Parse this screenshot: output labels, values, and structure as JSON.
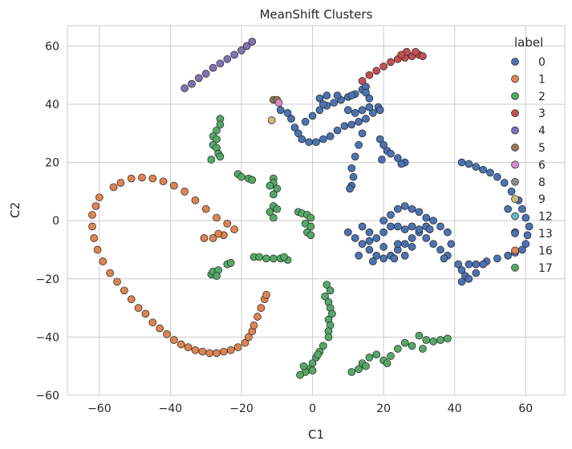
{
  "chart_data": {
    "type": "scatter",
    "title": "MeanShift Clusters",
    "xlabel": "C1",
    "ylabel": "C2",
    "xlim": [
      -69,
      71
    ],
    "ylim": [
      -60,
      67
    ],
    "x_ticks": [
      -60,
      -40,
      -20,
      0,
      20,
      40,
      60
    ],
    "y_ticks": [
      -60,
      -40,
      -20,
      0,
      20,
      40,
      60
    ],
    "x_tick_labels": [
      "−60",
      "−40",
      "−20",
      "0",
      "20",
      "40",
      "60"
    ],
    "y_tick_labels": [
      "−60",
      "−40",
      "−20",
      "0",
      "20",
      "40",
      "60"
    ],
    "grid": true,
    "legend": {
      "title": "label",
      "placement": "top-right",
      "entries": [
        {
          "label": "0",
          "color": "#4c72b0"
        },
        {
          "label": "1",
          "color": "#dd8452"
        },
        {
          "label": "2",
          "color": "#55a868"
        },
        {
          "label": "3",
          "color": "#c44e52"
        },
        {
          "label": "4",
          "color": "#8172b3"
        },
        {
          "label": "5",
          "color": "#937860"
        },
        {
          "label": "6",
          "color": "#da8bc3"
        },
        {
          "label": "8",
          "color": "#8c8c8c"
        },
        {
          "label": "9",
          "color": "#ccb974"
        },
        {
          "label": "12",
          "color": "#64b5cd"
        },
        {
          "label": "13",
          "color": "#4c72b0"
        },
        {
          "label": "16",
          "color": "#dd8452"
        },
        {
          "label": "17",
          "color": "#55a868"
        }
      ]
    },
    "series": [
      {
        "label": "1",
        "color": "#dd8452",
        "points": [
          [
            -28,
            -6
          ],
          [
            -25,
            -5
          ],
          [
            -22,
            -3
          ],
          [
            -24,
            -1
          ],
          [
            -27,
            1
          ],
          [
            -30,
            4
          ],
          [
            -33,
            7
          ],
          [
            -36,
            10
          ],
          [
            -39,
            12
          ],
          [
            -42,
            13.5
          ],
          [
            -45,
            14.5
          ],
          [
            -48,
            14.8
          ],
          [
            -51,
            14.5
          ],
          [
            -54,
            13
          ],
          [
            -56,
            11.5
          ],
          [
            -60,
            8
          ],
          [
            -61,
            5
          ],
          [
            -62,
            2
          ],
          [
            -62,
            -2
          ],
          [
            -61.5,
            -6
          ],
          [
            -60.5,
            -10
          ],
          [
            -59,
            -14
          ],
          [
            -57,
            -18
          ],
          [
            -55,
            -21
          ],
          [
            -53,
            -24
          ],
          [
            -51,
            -27
          ],
          [
            -49,
            -30
          ],
          [
            -47,
            -32
          ],
          [
            -45,
            -35
          ],
          [
            -43,
            -37
          ],
          [
            -41,
            -39
          ],
          [
            -39,
            -41
          ],
          [
            -37,
            -42.5
          ],
          [
            -35,
            -43.5
          ],
          [
            -33,
            -44.5
          ],
          [
            -31,
            -45
          ],
          [
            -29,
            -45.5
          ],
          [
            -27,
            -45.5
          ],
          [
            -25,
            -45
          ],
          [
            -23,
            -44.5
          ],
          [
            -21,
            -43.5
          ],
          [
            -19,
            -42
          ],
          [
            -18,
            -40
          ],
          [
            -17,
            -38
          ],
          [
            -16.5,
            -36
          ],
          [
            -15.5,
            -33
          ],
          [
            -14.5,
            -30
          ],
          [
            -13.5,
            -27
          ],
          [
            -13,
            -25.5
          ]
        ]
      },
      {
        "label": "4",
        "color": "#8172b3",
        "points": [
          [
            -36,
            45.5
          ],
          [
            -34,
            47
          ],
          [
            -32,
            49
          ],
          [
            -30,
            50.5
          ],
          [
            -28,
            52.5
          ],
          [
            -26,
            54
          ],
          [
            -24,
            55.5
          ],
          [
            -22,
            57
          ],
          [
            -20,
            58.5
          ],
          [
            -18.5,
            60
          ],
          [
            -17,
            61.5
          ]
        ]
      },
      {
        "label": "3",
        "color": "#c44e52",
        "points": [
          [
            14,
            48
          ],
          [
            16,
            50
          ],
          [
            18,
            51.5
          ],
          [
            20,
            53
          ],
          [
            22,
            54.5
          ],
          [
            24,
            55.5
          ],
          [
            26,
            56
          ],
          [
            28,
            56.5
          ],
          [
            30,
            57
          ],
          [
            26.5,
            58
          ],
          [
            29,
            58
          ],
          [
            25,
            57
          ],
          [
            31,
            56.5
          ]
        ]
      },
      {
        "label": "5",
        "color": "#937860",
        "points": [
          [
            -11,
            41.5
          ],
          [
            -10,
            41.5
          ]
        ]
      },
      {
        "label": "6",
        "color": "#da8bc3",
        "points": [
          [
            -9.5,
            40.5
          ]
        ]
      },
      {
        "label": "9",
        "color": "#ccb974",
        "points": [
          [
            -11.5,
            34.5
          ]
        ]
      },
      {
        "label": "2",
        "color": "#55a868",
        "points": [
          [
            -26,
            35
          ],
          [
            -26,
            33
          ],
          [
            -27,
            31
          ],
          [
            -28,
            29
          ],
          [
            -27,
            28
          ],
          [
            -28,
            26
          ],
          [
            -27,
            25
          ],
          [
            -26.5,
            23
          ],
          [
            -26,
            22
          ],
          [
            -21,
            16
          ],
          [
            -20,
            15
          ],
          [
            -18,
            14.5
          ],
          [
            -17,
            14
          ],
          [
            -11,
            14.5
          ],
          [
            -11,
            13
          ],
          [
            -12,
            12
          ],
          [
            -10,
            11
          ],
          [
            -11,
            9
          ],
          [
            -11,
            5
          ],
          [
            -10,
            4
          ],
          [
            -12,
            3
          ],
          [
            -11,
            1
          ],
          [
            -4,
            3
          ],
          [
            -3,
            2.5
          ],
          [
            -1.5,
            2
          ],
          [
            -2,
            -1
          ],
          [
            -1.5,
            -4
          ],
          [
            -0.5,
            1
          ],
          [
            -0.5,
            -2
          ],
          [
            -0.5,
            -5
          ],
          [
            -28.5,
            -18.5
          ],
          [
            -28,
            -17.5
          ],
          [
            -26.5,
            -17
          ],
          [
            -27,
            -19
          ],
          [
            -24,
            -15
          ],
          [
            -16.5,
            -12.5
          ],
          [
            -15,
            -12.5
          ],
          [
            -13,
            -13
          ],
          [
            -11,
            -13
          ],
          [
            -9,
            -13
          ],
          [
            -7,
            -13.5
          ],
          [
            -8,
            -12.5
          ],
          [
            4,
            -22
          ],
          [
            5,
            -24
          ],
          [
            3.5,
            -26
          ],
          [
            4.5,
            -28
          ],
          [
            5,
            -30
          ],
          [
            5.5,
            -32
          ],
          [
            4.5,
            -34
          ],
          [
            5,
            -36
          ],
          [
            4.5,
            -38
          ],
          [
            4.5,
            -40
          ],
          [
            3,
            -43
          ],
          [
            2,
            -45
          ],
          [
            1,
            -47
          ],
          [
            0,
            -49
          ],
          [
            -1,
            -51
          ],
          [
            -2,
            -52
          ],
          [
            -3.5,
            -53
          ],
          [
            -2.5,
            -50
          ],
          [
            0,
            -51.5
          ],
          [
            1.5,
            -46
          ],
          [
            11,
            -52
          ],
          [
            13,
            -51
          ],
          [
            14,
            -49
          ],
          [
            16,
            -47
          ],
          [
            18,
            -46
          ],
          [
            15,
            -50
          ],
          [
            20,
            -48
          ],
          [
            22,
            -46.5
          ],
          [
            21,
            -49
          ],
          [
            24,
            -44
          ],
          [
            26,
            -42
          ],
          [
            28,
            -43
          ],
          [
            30,
            -39.5
          ],
          [
            32,
            -41
          ],
          [
            34,
            -41.5
          ],
          [
            36,
            -41
          ],
          [
            38,
            -40.5
          ],
          [
            31,
            -44
          ]
        ]
      },
      {
        "label": "0",
        "color": "#4c72b0",
        "points": [
          [
            -7,
            37
          ],
          [
            -6,
            35
          ],
          [
            -5,
            32
          ],
          [
            -4,
            30
          ],
          [
            -3,
            28
          ],
          [
            -1,
            27
          ],
          [
            1,
            27
          ],
          [
            3,
            28
          ],
          [
            5,
            29
          ],
          [
            7,
            31
          ],
          [
            9,
            32.5
          ],
          [
            11,
            33
          ],
          [
            13,
            34
          ],
          [
            15,
            35
          ],
          [
            17,
            37
          ],
          [
            18.5,
            39
          ],
          [
            19,
            38
          ],
          [
            -2,
            34
          ],
          [
            0,
            36
          ],
          [
            2,
            38
          ],
          [
            4,
            39.5
          ],
          [
            6,
            40.5
          ],
          [
            8,
            41.5
          ],
          [
            10,
            42.5
          ],
          [
            12,
            43.5
          ],
          [
            14,
            45
          ],
          [
            15,
            46
          ],
          [
            2,
            42
          ],
          [
            4,
            43
          ],
          [
            7,
            43
          ],
          [
            11,
            43
          ],
          [
            10,
            38
          ],
          [
            12,
            37
          ],
          [
            14,
            38
          ],
          [
            16,
            39
          ],
          [
            16,
            42
          ],
          [
            15,
            44
          ],
          [
            14,
            30
          ],
          [
            13,
            26
          ],
          [
            12,
            22
          ],
          [
            11,
            18
          ],
          [
            11.5,
            15
          ],
          [
            11,
            12
          ],
          [
            10.5,
            11
          ],
          [
            19,
            28
          ],
          [
            20,
            26
          ],
          [
            21,
            24
          ],
          [
            22,
            23
          ],
          [
            24,
            21.5
          ],
          [
            26,
            20
          ],
          [
            25,
            19.5
          ],
          [
            19.5,
            21
          ],
          [
            10,
            -4
          ],
          [
            12,
            -6
          ],
          [
            14,
            -8
          ],
          [
            16,
            -10
          ],
          [
            18,
            -12
          ],
          [
            20,
            -13
          ],
          [
            22,
            -12
          ],
          [
            24,
            -10
          ],
          [
            26,
            -8
          ],
          [
            28,
            -6
          ],
          [
            30,
            -4
          ],
          [
            32,
            -2
          ],
          [
            34,
            0
          ],
          [
            36,
            -2
          ],
          [
            38,
            -4
          ],
          [
            39,
            -8
          ],
          [
            38,
            -12
          ],
          [
            36,
            -10
          ],
          [
            34,
            -8
          ],
          [
            32,
            -6
          ],
          [
            30,
            -3
          ],
          [
            28,
            -2
          ],
          [
            26,
            -3
          ],
          [
            24,
            -2
          ],
          [
            22,
            -2
          ],
          [
            20,
            -4
          ],
          [
            18,
            -6
          ],
          [
            16,
            -4
          ],
          [
            14,
            -2
          ],
          [
            20,
            0
          ],
          [
            22,
            2
          ],
          [
            24,
            4
          ],
          [
            26,
            5
          ],
          [
            28,
            4
          ],
          [
            30,
            3
          ],
          [
            32,
            1
          ],
          [
            33,
            -3
          ],
          [
            28,
            -9
          ],
          [
            24,
            -8
          ],
          [
            20,
            -9
          ],
          [
            16,
            -7
          ],
          [
            13,
            -12
          ],
          [
            17,
            -14
          ],
          [
            23,
            -13
          ],
          [
            26,
            -12
          ],
          [
            37,
            -13
          ],
          [
            41,
            -15
          ],
          [
            42,
            20
          ],
          [
            44,
            19.5
          ],
          [
            46,
            18.5
          ],
          [
            48,
            17.5
          ],
          [
            50,
            16.5
          ],
          [
            52,
            15
          ],
          [
            54,
            13
          ],
          [
            56,
            10
          ],
          [
            58,
            7
          ],
          [
            59,
            4
          ],
          [
            60,
            1
          ],
          [
            61,
            -2
          ],
          [
            60.5,
            -5
          ],
          [
            60,
            -8
          ],
          [
            59,
            -10
          ],
          [
            57,
            -11
          ],
          [
            55,
            -12
          ],
          [
            52,
            -13
          ],
          [
            49,
            -14
          ],
          [
            46,
            -15
          ],
          [
            44,
            -15
          ],
          [
            42,
            -17
          ],
          [
            43,
            -19
          ],
          [
            42,
            -21
          ],
          [
            44,
            -20
          ],
          [
            46,
            -18
          ],
          [
            48,
            -15
          ],
          [
            55,
            4
          ],
          [
            57,
            -4
          ]
        ]
      },
      {
        "label": "13",
        "color": "#4c72b0",
        "points": [
          [
            -9,
            38
          ],
          [
            3,
            40
          ]
        ]
      },
      {
        "label": "16",
        "color": "#dd8452",
        "points": [
          [
            -30.5,
            -6
          ],
          [
            -26.5,
            -4.5
          ]
        ]
      },
      {
        "label": "17",
        "color": "#55a868",
        "points": [
          [
            -28.5,
            21
          ],
          [
            -23,
            -14.5
          ]
        ]
      }
    ]
  }
}
